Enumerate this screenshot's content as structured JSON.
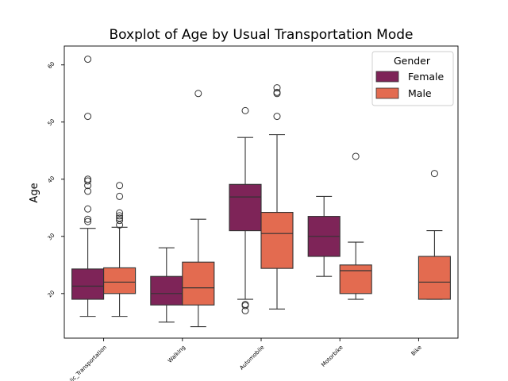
{
  "chart_data": {
    "type": "boxplot",
    "title": "Boxplot of Age by Usual Transportation Mode",
    "xlabel": "",
    "ylabel": "Age",
    "ylim": [
      12.2,
      63.3
    ],
    "yticks": [
      20,
      30,
      40,
      50,
      60
    ],
    "grid": false,
    "legend": {
      "title": "Gender",
      "placement": "top-right"
    },
    "categories": [
      "Public_Transportation",
      "Walking",
      "Automobile",
      "Motorbike",
      "Bike"
    ],
    "tick_labels": [
      "Public_Transportation",
      "Walking",
      "Automobile",
      "Motorbike",
      "Bike"
    ],
    "series": [
      {
        "name": "Female",
        "color": "#7e2458",
        "boxes": [
          {
            "category": "Public_Transportation",
            "whisker_low": 16,
            "q1": 19,
            "median": 21.3,
            "q3": 24.3,
            "whisker_high": 31.4,
            "outliers": [
              32.6,
              33,
              34.8,
              37.9,
              38.9,
              39.7,
              40,
              51,
              61
            ]
          },
          {
            "category": "Walking",
            "whisker_low": 15,
            "q1": 18,
            "median": 20,
            "q3": 23,
            "whisker_high": 28,
            "outliers": []
          },
          {
            "category": "Automobile",
            "whisker_low": 19,
            "q1": 31,
            "median": 36.9,
            "q3": 39.1,
            "whisker_high": 47.3,
            "outliers": [
              17,
              17.9,
              18.1,
              52
            ]
          },
          {
            "category": "Motorbike",
            "whisker_low": 23,
            "q1": 26.5,
            "median": 30,
            "q3": 33.5,
            "whisker_high": 37,
            "outliers": []
          },
          null
        ]
      },
      {
        "name": "Male",
        "color": "#e36b50",
        "boxes": [
          {
            "category": "Public_Transportation",
            "whisker_low": 16,
            "q1": 20,
            "median": 22,
            "q3": 24.5,
            "whisker_high": 31.6,
            "outliers": [
              32,
              32.8,
              33.2,
              33.6,
              34.1,
              37,
              38.9
            ]
          },
          {
            "category": "Walking",
            "whisker_low": 14.2,
            "q1": 18,
            "median": 21,
            "q3": 25.5,
            "whisker_high": 33,
            "outliers": [
              55
            ]
          },
          {
            "category": "Automobile",
            "whisker_low": 17.3,
            "q1": 24.4,
            "median": 30.5,
            "q3": 34.2,
            "whisker_high": 47.8,
            "outliers": [
              51,
              55,
              55.2,
              56
            ]
          },
          {
            "category": "Motorbike",
            "whisker_low": 19,
            "q1": 20,
            "median": 24,
            "q3": 25,
            "whisker_high": 29,
            "outliers": [
              44
            ]
          },
          {
            "category": "Bike",
            "whisker_low": 19,
            "q1": 19,
            "median": 22,
            "q3": 26.5,
            "whisker_high": 31,
            "outliers": [
              41
            ]
          }
        ]
      }
    ]
  }
}
